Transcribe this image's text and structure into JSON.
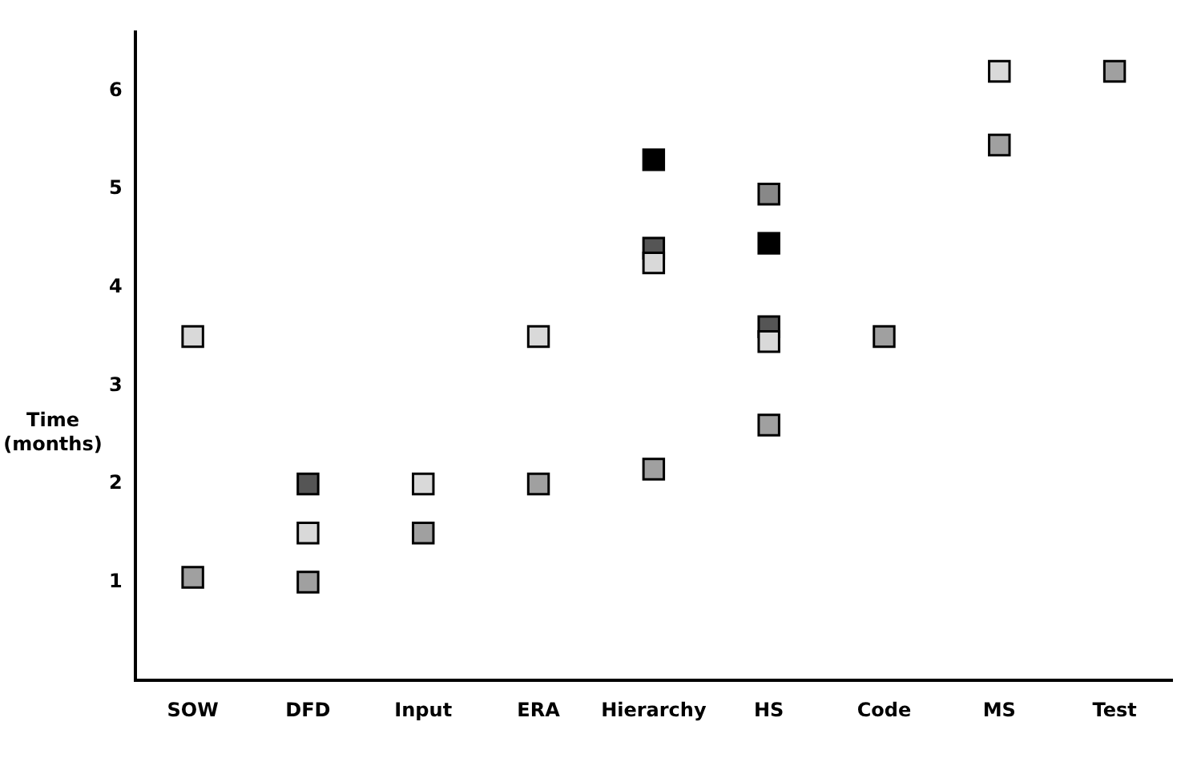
{
  "chart_data": {
    "type": "scatter",
    "ylabel": "Time (months)",
    "categories": [
      "SOW",
      "DFD",
      "Input",
      "ERA",
      "Hierarchy",
      "HS",
      "Code",
      "MS",
      "Test"
    ],
    "series": [
      {
        "color": "#a0a0a0",
        "values": [
          1.05,
          1.0,
          1.5,
          2.0,
          2.15,
          2.6,
          3.5,
          5.45,
          6.2
        ]
      },
      {
        "color": "#d9d9d9",
        "values": [
          3.5,
          1.5,
          2.0,
          3.5,
          4.25,
          3.45,
          null,
          6.2,
          null
        ]
      },
      {
        "color": "#555555",
        "values": [
          null,
          2.0,
          null,
          null,
          4.4,
          3.6,
          null,
          null,
          null
        ]
      },
      {
        "color": "#000000",
        "values": [
          null,
          null,
          null,
          null,
          5.3,
          4.45,
          null,
          null,
          null
        ]
      },
      {
        "color": "#888888",
        "values": [
          null,
          null,
          null,
          null,
          null,
          4.95,
          null,
          null,
          null
        ]
      }
    ],
    "ylim": [
      0,
      6.6
    ],
    "yticks": [
      1,
      2,
      3,
      4,
      5,
      6
    ],
    "grid": false,
    "legend": false,
    "marker": "square"
  }
}
